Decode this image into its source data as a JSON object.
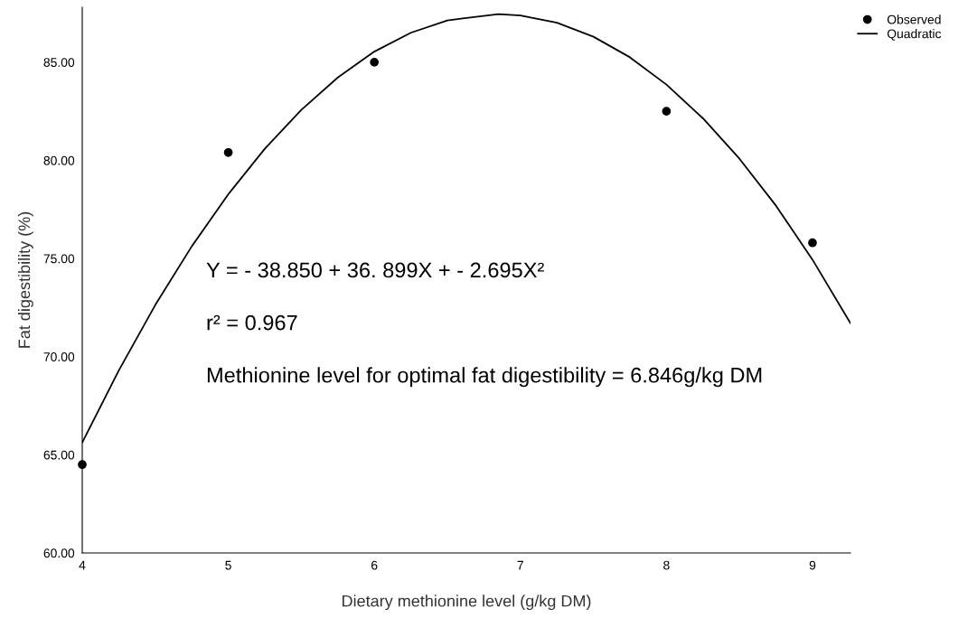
{
  "chart_data": {
    "type": "scatter",
    "xlabel": "Dietary methionine level (g/kg DM)",
    "ylabel": "Fat digestibility (%)",
    "xlim": [
      4,
      9.26
    ],
    "xticks": [
      4,
      5,
      6,
      7,
      8,
      9
    ],
    "ylim": [
      60,
      87.8
    ],
    "yticks": [
      {
        "value": 60,
        "label": "60.00"
      },
      {
        "value": 65,
        "label": "65.00"
      },
      {
        "value": 70,
        "label": "70.00"
      },
      {
        "value": 75,
        "label": "75.00"
      },
      {
        "value": 80,
        "label": "80.00"
      },
      {
        "value": 85,
        "label": "85.00"
      }
    ],
    "grid": false,
    "legend": "top right",
    "series": [
      {
        "name": "Observed",
        "color": "#000000",
        "marker": "circle",
        "x": [
          4,
          5,
          6,
          8,
          9
        ],
        "values": [
          64.5,
          80.4,
          85.0,
          82.5,
          75.8
        ]
      },
      {
        "name": "Quadratic",
        "type": "line",
        "color": "#000000",
        "marker": "none",
        "line_style": "solid",
        "x": [
          4,
          4.25,
          4.5,
          4.75,
          5,
          5.25,
          5.5,
          5.75,
          6,
          6.25,
          6.5,
          6.85,
          7,
          7.25,
          7.5,
          7.75,
          8,
          8.25,
          8.5,
          8.75,
          9,
          9.26
        ],
        "values": [
          65.63,
          69.29,
          72.63,
          75.62,
          78.27,
          80.59,
          82.57,
          84.22,
          85.54,
          86.5,
          87.13,
          87.45,
          87.38,
          87.01,
          86.3,
          85.25,
          83.86,
          82.14,
          80.08,
          77.69,
          74.94,
          71.7
        ]
      }
    ],
    "annotations": [
      "Y = - 38.850 + 36. 899X + - 2.695X²",
      "r² = 0.967",
      "Methionine level for optimal fat digestibility = 6.846g/kg DM"
    ]
  }
}
